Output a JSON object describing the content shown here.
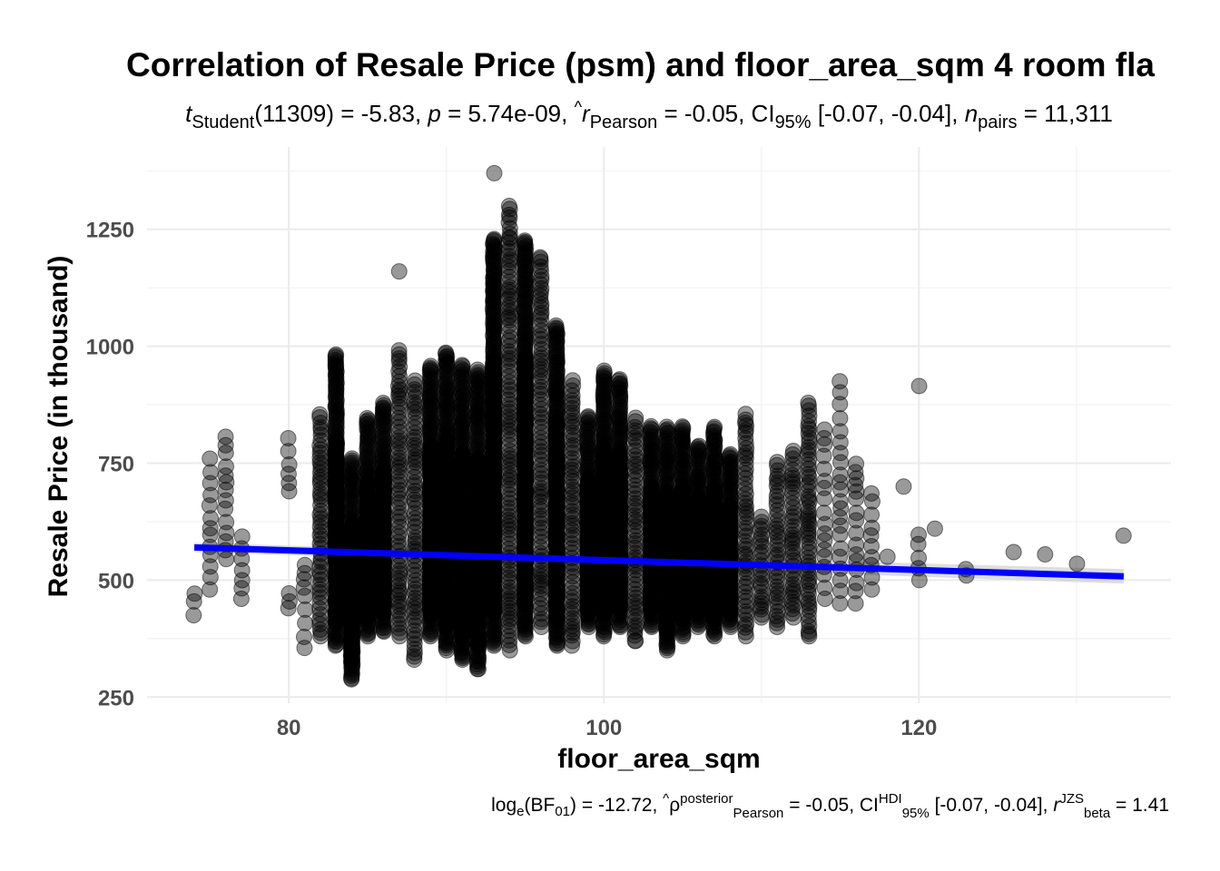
{
  "chart_data": {
    "type": "scatter",
    "title": "Correlation of Resale Price (psm) and floor_area_sqm 4 room fla",
    "subtitle": {
      "t_symbol": "t",
      "t_sub": "Student",
      "t_value": "(11309) = -5.83, ",
      "p_symbol": "p",
      "p_value": " = 5.74e-09, ",
      "r_symbol": "r",
      "r_hat": "^",
      "r_sub": "Pearson",
      "r_value": " = -0.05, CI",
      "ci_sub": "95%",
      "ci_value": " [-0.07, -0.04], ",
      "n_symbol": "n",
      "n_sub": "pairs",
      "n_value": " = 11,311"
    },
    "caption": {
      "log": "log",
      "log_sub": "e",
      "bf": "(BF",
      "bf_sub": "01",
      "bf_value": ") = -12.72, ",
      "rho": "ρ",
      "rho_hat": "^",
      "rho_sup": "posterior",
      "rho_sub": "Pearson",
      "rho_value": " = -0.05, CI",
      "ci_sup": "HDI",
      "ci_sub": "95%",
      "ci_value": " [-0.07, -0.04], ",
      "r_symbol": "r",
      "r_sup": "JZS",
      "r_sub": "beta",
      "r_value": " = 1.41"
    },
    "xlabel": "floor_area_sqm",
    "ylabel": "Resale Price (in thousand)",
    "xlim": [
      71,
      136
    ],
    "ylim": [
      237,
      1426
    ],
    "xticks": [
      "80",
      "100",
      "120"
    ],
    "yticks": [
      "250",
      "500",
      "750",
      "1000",
      "1250"
    ],
    "grid": true,
    "point_color": "#000000",
    "point_alpha": 0.4,
    "line_color": "#0000ff",
    "band_color": "#d0d0d0",
    "regression": {
      "x": [
        74,
        133
      ],
      "y": [
        570,
        508
      ]
    },
    "columns": [
      {
        "x": 74,
        "y_min": 425,
        "y_max": 485,
        "density": "sparse"
      },
      {
        "x": 75,
        "y_min": 480,
        "y_max": 760,
        "density": "sparse"
      },
      {
        "x": 76,
        "y_min": 545,
        "y_max": 815,
        "density": "sparse"
      },
      {
        "x": 77,
        "y_min": 460,
        "y_max": 600,
        "density": "sparse"
      },
      {
        "x": 80,
        "y_min": 690,
        "y_max": 810,
        "density": "sparse"
      },
      {
        "x": 80,
        "y_min": 440,
        "y_max": 475,
        "density": "sparse"
      },
      {
        "x": 81,
        "y_min": 355,
        "y_max": 540,
        "density": "sparse"
      },
      {
        "x": 82,
        "y_min": 380,
        "y_max": 860,
        "density": "medium"
      },
      {
        "x": 83,
        "y_min": 360,
        "y_max": 985,
        "density": "dense"
      },
      {
        "x": 84,
        "y_min": 290,
        "y_max": 760,
        "density": "dense"
      },
      {
        "x": 85,
        "y_min": 380,
        "y_max": 850,
        "density": "dense"
      },
      {
        "x": 86,
        "y_min": 390,
        "y_max": 880,
        "density": "dense"
      },
      {
        "x": 87,
        "y_min": 380,
        "y_max": 1000,
        "density": "medium"
      },
      {
        "x": 88,
        "y_min": 330,
        "y_max": 930,
        "density": "medium"
      },
      {
        "x": 89,
        "y_min": 380,
        "y_max": 960,
        "density": "dense"
      },
      {
        "x": 90,
        "y_min": 350,
        "y_max": 990,
        "density": "dense"
      },
      {
        "x": 91,
        "y_min": 330,
        "y_max": 960,
        "density": "dense"
      },
      {
        "x": 92,
        "y_min": 310,
        "y_max": 950,
        "density": "dense"
      },
      {
        "x": 93,
        "y_min": 360,
        "y_max": 1230,
        "density": "dense"
      },
      {
        "x": 94,
        "y_min": 350,
        "y_max": 1300,
        "density": "medium"
      },
      {
        "x": 95,
        "y_min": 380,
        "y_max": 1230,
        "density": "dense"
      },
      {
        "x": 96,
        "y_min": 400,
        "y_max": 1190,
        "density": "medium"
      },
      {
        "x": 97,
        "y_min": 360,
        "y_max": 1045,
        "density": "dense"
      },
      {
        "x": 98,
        "y_min": 360,
        "y_max": 930,
        "density": "medium"
      },
      {
        "x": 99,
        "y_min": 400,
        "y_max": 850,
        "density": "dense"
      },
      {
        "x": 100,
        "y_min": 380,
        "y_max": 950,
        "density": "dense"
      },
      {
        "x": 101,
        "y_min": 400,
        "y_max": 930,
        "density": "dense"
      },
      {
        "x": 102,
        "y_min": 370,
        "y_max": 850,
        "density": "medium"
      },
      {
        "x": 103,
        "y_min": 400,
        "y_max": 830,
        "density": "dense"
      },
      {
        "x": 104,
        "y_min": 350,
        "y_max": 830,
        "density": "dense"
      },
      {
        "x": 105,
        "y_min": 380,
        "y_max": 830,
        "density": "dense"
      },
      {
        "x": 106,
        "y_min": 400,
        "y_max": 790,
        "density": "dense"
      },
      {
        "x": 107,
        "y_min": 380,
        "y_max": 830,
        "density": "dense"
      },
      {
        "x": 108,
        "y_min": 400,
        "y_max": 770,
        "density": "dense"
      },
      {
        "x": 109,
        "y_min": 380,
        "y_max": 860,
        "density": "medium"
      },
      {
        "x": 110,
        "y_min": 420,
        "y_max": 640,
        "density": "medium"
      },
      {
        "x": 111,
        "y_min": 400,
        "y_max": 760,
        "density": "medium"
      },
      {
        "x": 112,
        "y_min": 420,
        "y_max": 780,
        "density": "medium"
      },
      {
        "x": 113,
        "y_min": 380,
        "y_max": 880,
        "density": "medium"
      },
      {
        "x": 114,
        "y_min": 460,
        "y_max": 830,
        "density": "sparse"
      },
      {
        "x": 115,
        "y_min": 450,
        "y_max": 930,
        "density": "sparse"
      },
      {
        "x": 116,
        "y_min": 450,
        "y_max": 760,
        "density": "sparse"
      },
      {
        "x": 117,
        "y_min": 480,
        "y_max": 700,
        "density": "sparse"
      },
      {
        "x": 118,
        "y_min": 550,
        "y_max": 550,
        "density": "single"
      },
      {
        "x": 119,
        "y_min": 700,
        "y_max": 700,
        "density": "single"
      },
      {
        "x": 120,
        "y_min": 500,
        "y_max": 600,
        "density": "sparse"
      },
      {
        "x": 120,
        "y_min": 915,
        "y_max": 930,
        "density": "sparse"
      },
      {
        "x": 121,
        "y_min": 610,
        "y_max": 610,
        "density": "single"
      },
      {
        "x": 123,
        "y_min": 510,
        "y_max": 530,
        "density": "sparse"
      },
      {
        "x": 126,
        "y_min": 560,
        "y_max": 560,
        "density": "single"
      },
      {
        "x": 128,
        "y_min": 555,
        "y_max": 555,
        "density": "single"
      },
      {
        "x": 130,
        "y_min": 535,
        "y_max": 535,
        "density": "single"
      },
      {
        "x": 133,
        "y_min": 595,
        "y_max": 595,
        "density": "single"
      }
    ],
    "outliers": [
      {
        "x": 87,
        "y": 1160
      },
      {
        "x": 93,
        "y": 1370
      },
      {
        "x": 94,
        "y": 1300
      },
      {
        "x": 94,
        "y": 1230
      },
      {
        "x": 95,
        "y": 1160
      },
      {
        "x": 96,
        "y": 1190
      },
      {
        "x": 84,
        "y": 288
      },
      {
        "x": 84,
        "y": 325
      },
      {
        "x": 92,
        "y": 310
      },
      {
        "x": 113,
        "y": 385
      },
      {
        "x": 102,
        "y": 370
      }
    ]
  }
}
